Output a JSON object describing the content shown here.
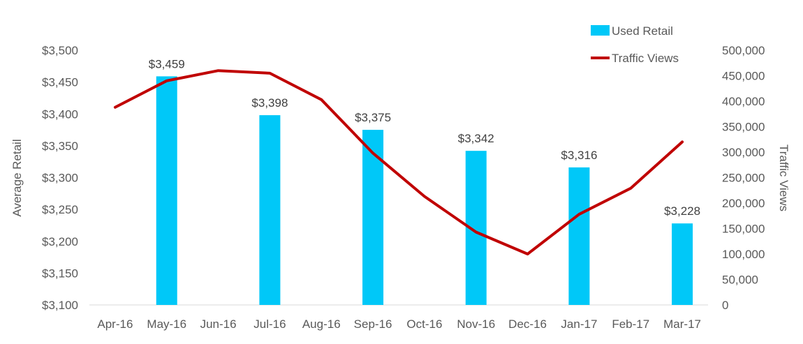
{
  "chart_data": {
    "type": "bar",
    "categories": [
      "Apr-16",
      "May-16",
      "Jun-16",
      "Jul-16",
      "Aug-16",
      "Sep-16",
      "Oct-16",
      "Nov-16",
      "Dec-16",
      "Jan-17",
      "Feb-17",
      "Mar-17"
    ],
    "series": [
      {
        "name": "Used Retail",
        "type": "bar",
        "axis": "left",
        "color": "#00C8F8",
        "values": [
          null,
          3459,
          null,
          3398,
          null,
          3375,
          null,
          3342,
          null,
          3316,
          null,
          3228
        ],
        "labels": [
          "",
          "$3,459",
          "",
          "$3,398",
          "",
          "$3,375",
          "",
          "$3,342",
          "",
          "$3,316",
          "",
          "$3,228"
        ]
      },
      {
        "name": "Traffic Views",
        "type": "line",
        "axis": "right",
        "color": "#C00000",
        "values": [
          388000,
          440000,
          460000,
          455000,
          403000,
          298000,
          213000,
          143000,
          100000,
          178000,
          229000,
          320000
        ]
      }
    ],
    "ylabel": "Average Retail",
    "ylabel_right": "Traffic Views",
    "ylim": [
      3100,
      3500
    ],
    "ylim_right": [
      0,
      500000
    ],
    "y_ticks": [
      "$3,100",
      "$3,150",
      "$3,200",
      "$3,250",
      "$3,300",
      "$3,350",
      "$3,400",
      "$3,450",
      "$3,500"
    ],
    "y_right_ticks": [
      "0",
      "50,000",
      "100,000",
      "150,000",
      "200,000",
      "250,000",
      "300,000",
      "350,000",
      "400,000",
      "450,000",
      "500,000"
    ],
    "grid": false,
    "legend": "top-right"
  }
}
